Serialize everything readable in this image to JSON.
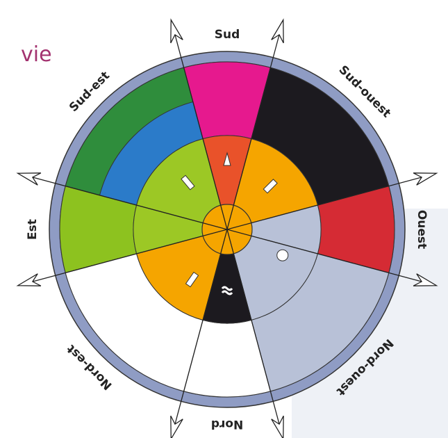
{
  "title": "vie",
  "labels": [
    "Sud",
    "Sud-ouest",
    "Ouest",
    "Nord-ouest",
    "Nord",
    "Nord-est",
    "Est",
    "Sud-est"
  ]
}
